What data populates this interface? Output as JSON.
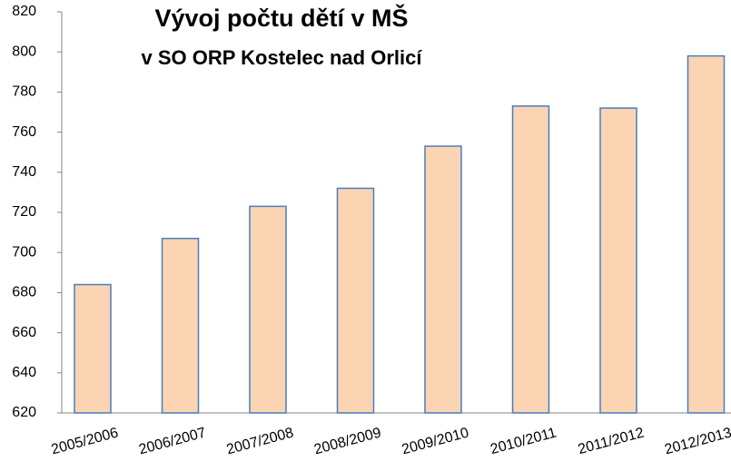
{
  "chart_data": {
    "type": "bar",
    "title": "Vývoj počtu dětí v MŠ",
    "subtitle": "v SO ORP Kostelec nad Orlicí",
    "categories": [
      "2005/2006",
      "2006/2007",
      "2007/2008",
      "2008/2009",
      "2009/2010",
      "2010/2011",
      "2011/2012",
      "2012/2013"
    ],
    "values": [
      684,
      707,
      723,
      732,
      753,
      773,
      772,
      798
    ],
    "color": "#fbd4b4",
    "edge_color": "#4a7ebb",
    "ylim": [
      620,
      820
    ],
    "yticks": [
      620,
      640,
      660,
      680,
      700,
      720,
      740,
      760,
      780,
      800,
      820
    ],
    "grid": false
  }
}
